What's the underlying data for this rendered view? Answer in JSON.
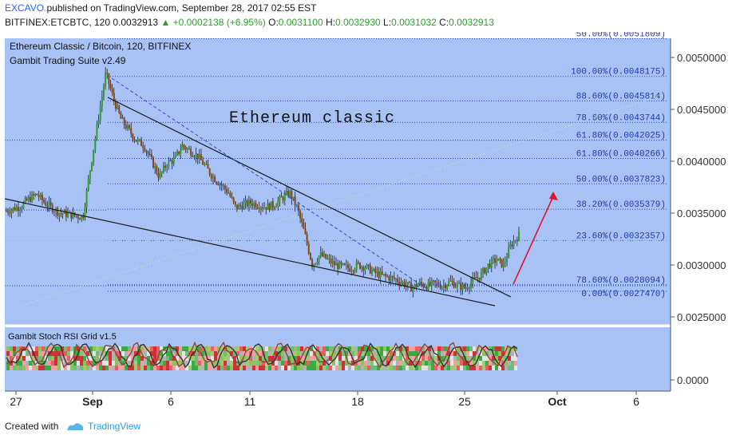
{
  "header": {
    "username": "EXCAVO",
    "published_text": "published on TradingView.com, September 28, 2017 02:55 EST",
    "symbol": "BITFINEX:ETCBTC, 120",
    "last": "0.0032913",
    "change": "▲ +0.0002138 (+6.95%)",
    "o_label": "O:",
    "o": "0.0031100",
    "h_label": "H:",
    "h": "0.0032930",
    "l_label": "L:",
    "l": "0.0031032",
    "c_label": "C:",
    "c": "0.0032913"
  },
  "legend": {
    "title": "Ethereum Classic / Bitcoin, 120, BITFINEX",
    "indicator": "Gambit Trading Suite v2.49",
    "annotation": "Ethereum classic",
    "subpanel_title": "Gambit Stoch RSI Grid v1.5"
  },
  "footer": {
    "created": "Created with",
    "brand": "TradingView"
  },
  "colors": {
    "plot_bg": "#a9c2f5",
    "fib_line": "#2a45b8",
    "fib_text": "#1f3aa8",
    "green_line": "#7fd67f",
    "trend_line": "#1a1a1a",
    "arrow": "#e0152b",
    "candle_up": "#2f9e2f",
    "candle_down": "#8b4513"
  },
  "chart_data": {
    "type": "candlestick",
    "ylim": [
      0.00245,
      0.00518
    ],
    "y_ticks": [
      "0.0050000",
      "0.0045000",
      "0.0040000",
      "0.0035000",
      "0.0030000",
      "0.0025000"
    ],
    "x_ticks": [
      "27",
      "Sep",
      "6",
      "11",
      "18",
      "25",
      "Oct",
      "6"
    ],
    "fib_levels": [
      {
        "label": "50.00%(0.0051809)",
        "value": 0.0051809
      },
      {
        "label": "100.00%(0.0048175)",
        "value": 0.0048175
      },
      {
        "label": "88.60%(0.0045814)",
        "value": 0.0045814
      },
      {
        "label": "78.60%(0.0043744)",
        "value": 0.0043744
      },
      {
        "label": "61.80%(0.0042025)",
        "value": 0.0042025
      },
      {
        "label": "61.80%(0.0040266)",
        "value": 0.0040266
      },
      {
        "label": "50.00%(0.0037823)",
        "value": 0.0037823
      },
      {
        "label": "38.20%(0.0035379)",
        "value": 0.0035379
      },
      {
        "label": "23.60%(0.0032357)",
        "value": 0.0032357
      },
      {
        "label": "78.60%(0.0028094)",
        "value": 0.0028094
      },
      {
        "label": "0.00%(0.0027470)",
        "value": 0.002747
      }
    ],
    "price_path": [
      [
        0,
        0.00352
      ],
      [
        2,
        0.00357
      ],
      [
        3,
        0.00364
      ],
      [
        4,
        0.00368
      ],
      [
        5,
        0.0036
      ],
      [
        6,
        0.00355
      ],
      [
        7,
        0.0035
      ],
      [
        8,
        0.00349
      ],
      [
        10,
        0.00346
      ],
      [
        11,
        0.00395
      ],
      [
        12,
        0.0044
      ],
      [
        13,
        0.00485
      ],
      [
        14,
        0.0046
      ],
      [
        15,
        0.0044
      ],
      [
        16,
        0.0043
      ],
      [
        17,
        0.0042
      ],
      [
        18,
        0.00415
      ],
      [
        19,
        0.004
      ],
      [
        20,
        0.00385
      ],
      [
        21,
        0.00398
      ],
      [
        22,
        0.00402
      ],
      [
        23,
        0.00415
      ],
      [
        24,
        0.0041
      ],
      [
        25,
        0.00405
      ],
      [
        26,
        0.00395
      ],
      [
        27,
        0.00385
      ],
      [
        28,
        0.00378
      ],
      [
        29,
        0.0037
      ],
      [
        30,
        0.00355
      ],
      [
        31,
        0.00358
      ],
      [
        32,
        0.0036
      ],
      [
        33,
        0.00358
      ],
      [
        34,
        0.00356
      ],
      [
        35,
        0.00358
      ],
      [
        36,
        0.00364
      ],
      [
        37,
        0.0037
      ],
      [
        38,
        0.00355
      ],
      [
        39,
        0.0033
      ],
      [
        40,
        0.003
      ],
      [
        41,
        0.0031
      ],
      [
        42,
        0.00305
      ],
      [
        43,
        0.003
      ],
      [
        44,
        0.00298
      ],
      [
        45,
        0.00297
      ],
      [
        46,
        0.003
      ],
      [
        47,
        0.00298
      ],
      [
        48,
        0.00293
      ],
      [
        49,
        0.0029
      ],
      [
        50,
        0.00288
      ],
      [
        51,
        0.00286
      ],
      [
        52,
        0.00282
      ],
      [
        53,
        0.00278
      ],
      [
        54,
        0.00282
      ],
      [
        55,
        0.0028
      ],
      [
        56,
        0.00282
      ],
      [
        57,
        0.0028
      ],
      [
        58,
        0.00284
      ],
      [
        59,
        0.0028
      ],
      [
        60,
        0.00278
      ],
      [
        61,
        0.00285
      ],
      [
        62,
        0.0029
      ],
      [
        63,
        0.003
      ],
      [
        64,
        0.00305
      ],
      [
        65,
        0.003
      ],
      [
        66,
        0.0032
      ],
      [
        67,
        0.00329
      ]
    ],
    "subpanel_ticks": [
      "0.0000"
    ]
  }
}
